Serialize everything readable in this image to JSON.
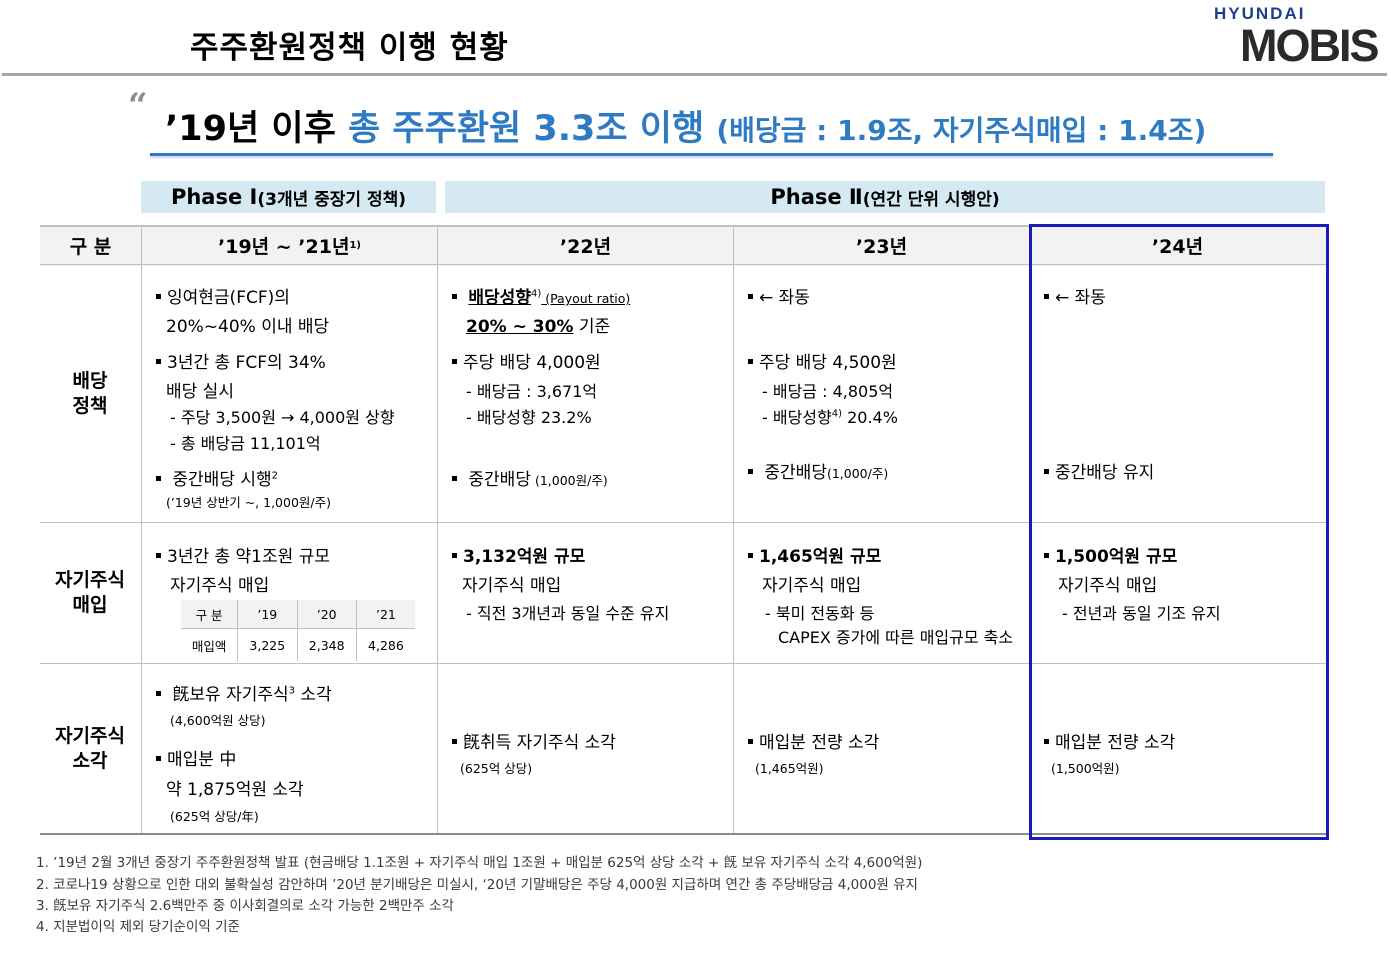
{
  "header": {
    "title": "주주환원정책 이행 현황",
    "logo_top": "HYUNDAI",
    "logo_main": "MOBIS"
  },
  "headline": {
    "quote": "“",
    "part1": "’19년 이후 ",
    "part2": "총 주주환원 3.3조 이행 ",
    "part3": "(배당금 : 1.9조, 자기주식매입 : 1.4조)"
  },
  "phases": {
    "phase1_label": "Phase Ⅰ ",
    "phase1_note": "(3개년 중장기 정책)",
    "phase2_label": "Phase Ⅱ ",
    "phase2_note": "(연간 단위 시행안)"
  },
  "columns": {
    "category": "구 분",
    "c1": "’19년 ~ ’21년",
    "c1_sup": "1)",
    "c2": "’22년",
    "c3": "’23년",
    "c4": "’24년"
  },
  "rows": {
    "dividend": {
      "label_1": "배당",
      "label_2": "정책",
      "c1": {
        "l1": "잉여현금(FCF)의",
        "l2": "20%~40% 이내 배당",
        "l3": "3년간 총 FCF의 34%",
        "l4": "배당 실시",
        "l5": "- 주당 3,500원 → 4,000원 상향",
        "l6": "- 총 배당금 11,101억",
        "l7": "중간배당 시행",
        "l7_sup": "2",
        "l8": "(’19년 상반기 ~, 1,000원/주)"
      },
      "c2": {
        "l1": "배당성향",
        "l1_sup": "4)",
        "l1_note": " (Payout ratio)",
        "l2": "20% ~ 30%",
        "l2_tail": " 기준",
        "l3": "주당 배당 4,000원",
        "l4": "- 배당금 : 3,671억",
        "l5": "- 배당성향 23.2%",
        "l6": "중간배당",
        "l6_note": " (1,000원/주)"
      },
      "c3": {
        "l1": "← 좌동",
        "l2": "주당 배당 4,500원",
        "l3": "- 배당금 : 4,805억",
        "l4": "- 배당성향",
        "l4_sup": "4)",
        "l4_tail": " 20.4%",
        "l5": "중간배당",
        "l5_note": "(1,000/주)"
      },
      "c4": {
        "l1": "← 좌동",
        "l2": "중간배당 유지"
      }
    },
    "buyback": {
      "label_1": "자기주식",
      "label_2": "매입",
      "c1": {
        "l1": "3년간 총 약1조원 규모",
        "l2": "자기주식 매입",
        "table_headers": [
          "구 분",
          "’19",
          "’20",
          "’21"
        ],
        "table_row": [
          "매입액",
          "3,225",
          "2,348",
          "4,286"
        ]
      },
      "c2": {
        "l1": "3,132억원 규모",
        "l2": "자기주식 매입",
        "l3": "- 직전 3개년과 동일 수준 유지"
      },
      "c3": {
        "l1": "1,465억원 규모",
        "l2": "자기주식 매입",
        "l3": "- 북미 전동화 등",
        "l4": "CAPEX 증가에 따른 매입규모 축소"
      },
      "c4": {
        "l1": "1,500억원 규모",
        "l2": "자기주식 매입",
        "l3": "- 전년과 동일 기조 유지"
      }
    },
    "cancel": {
      "label_1": "자기주식",
      "label_2": "소각",
      "c1": {
        "l1": "旣보유 자기주식",
        "l1_sup": "3",
        "l1_tail": " 소각",
        "l2": "(4,600억원 상당)",
        "l3": "매입분 中",
        "l4": "약 1,875억원 소각",
        "l5": "(625억 상당/年)"
      },
      "c2": {
        "l1": "旣취득 자기주식 소각",
        "l2": "(625억 상당)"
      },
      "c3": {
        "l1": "매입분 전량 소각",
        "l2": "(1,465억원)"
      },
      "c4": {
        "l1": "매입분 전량 소각",
        "l2": "(1,500억원)"
      }
    }
  },
  "footnotes": [
    "1. ’19년 2월 3개년 중장기 주주환원정책 발표 (현금배당 1.1조원 + 자기주식 매입 1조원 + 매입분 625억 상당 소각 + 旣 보유 자기주식 소각 4,600억원)",
    "2.  코로나19 상황으로 인한 대외 불확실성 감안하며 ’20년 분기배당은 미실시, ‘20년 기말배당은 주당 4,000원 지급하며 연간 총 주당배당금 4,000원 유지",
    "3. 旣보유 자기주식 2.6백만주 중 이사회결의로 소각 가능한 2백만주 소각",
    "4. 지분법이익 제외 당기순이익 기준"
  ],
  "colors": {
    "accent_blue": "#2e7bc4",
    "highlight_border": "#1a1ab8",
    "phase_bg": "#d4e9f1"
  }
}
